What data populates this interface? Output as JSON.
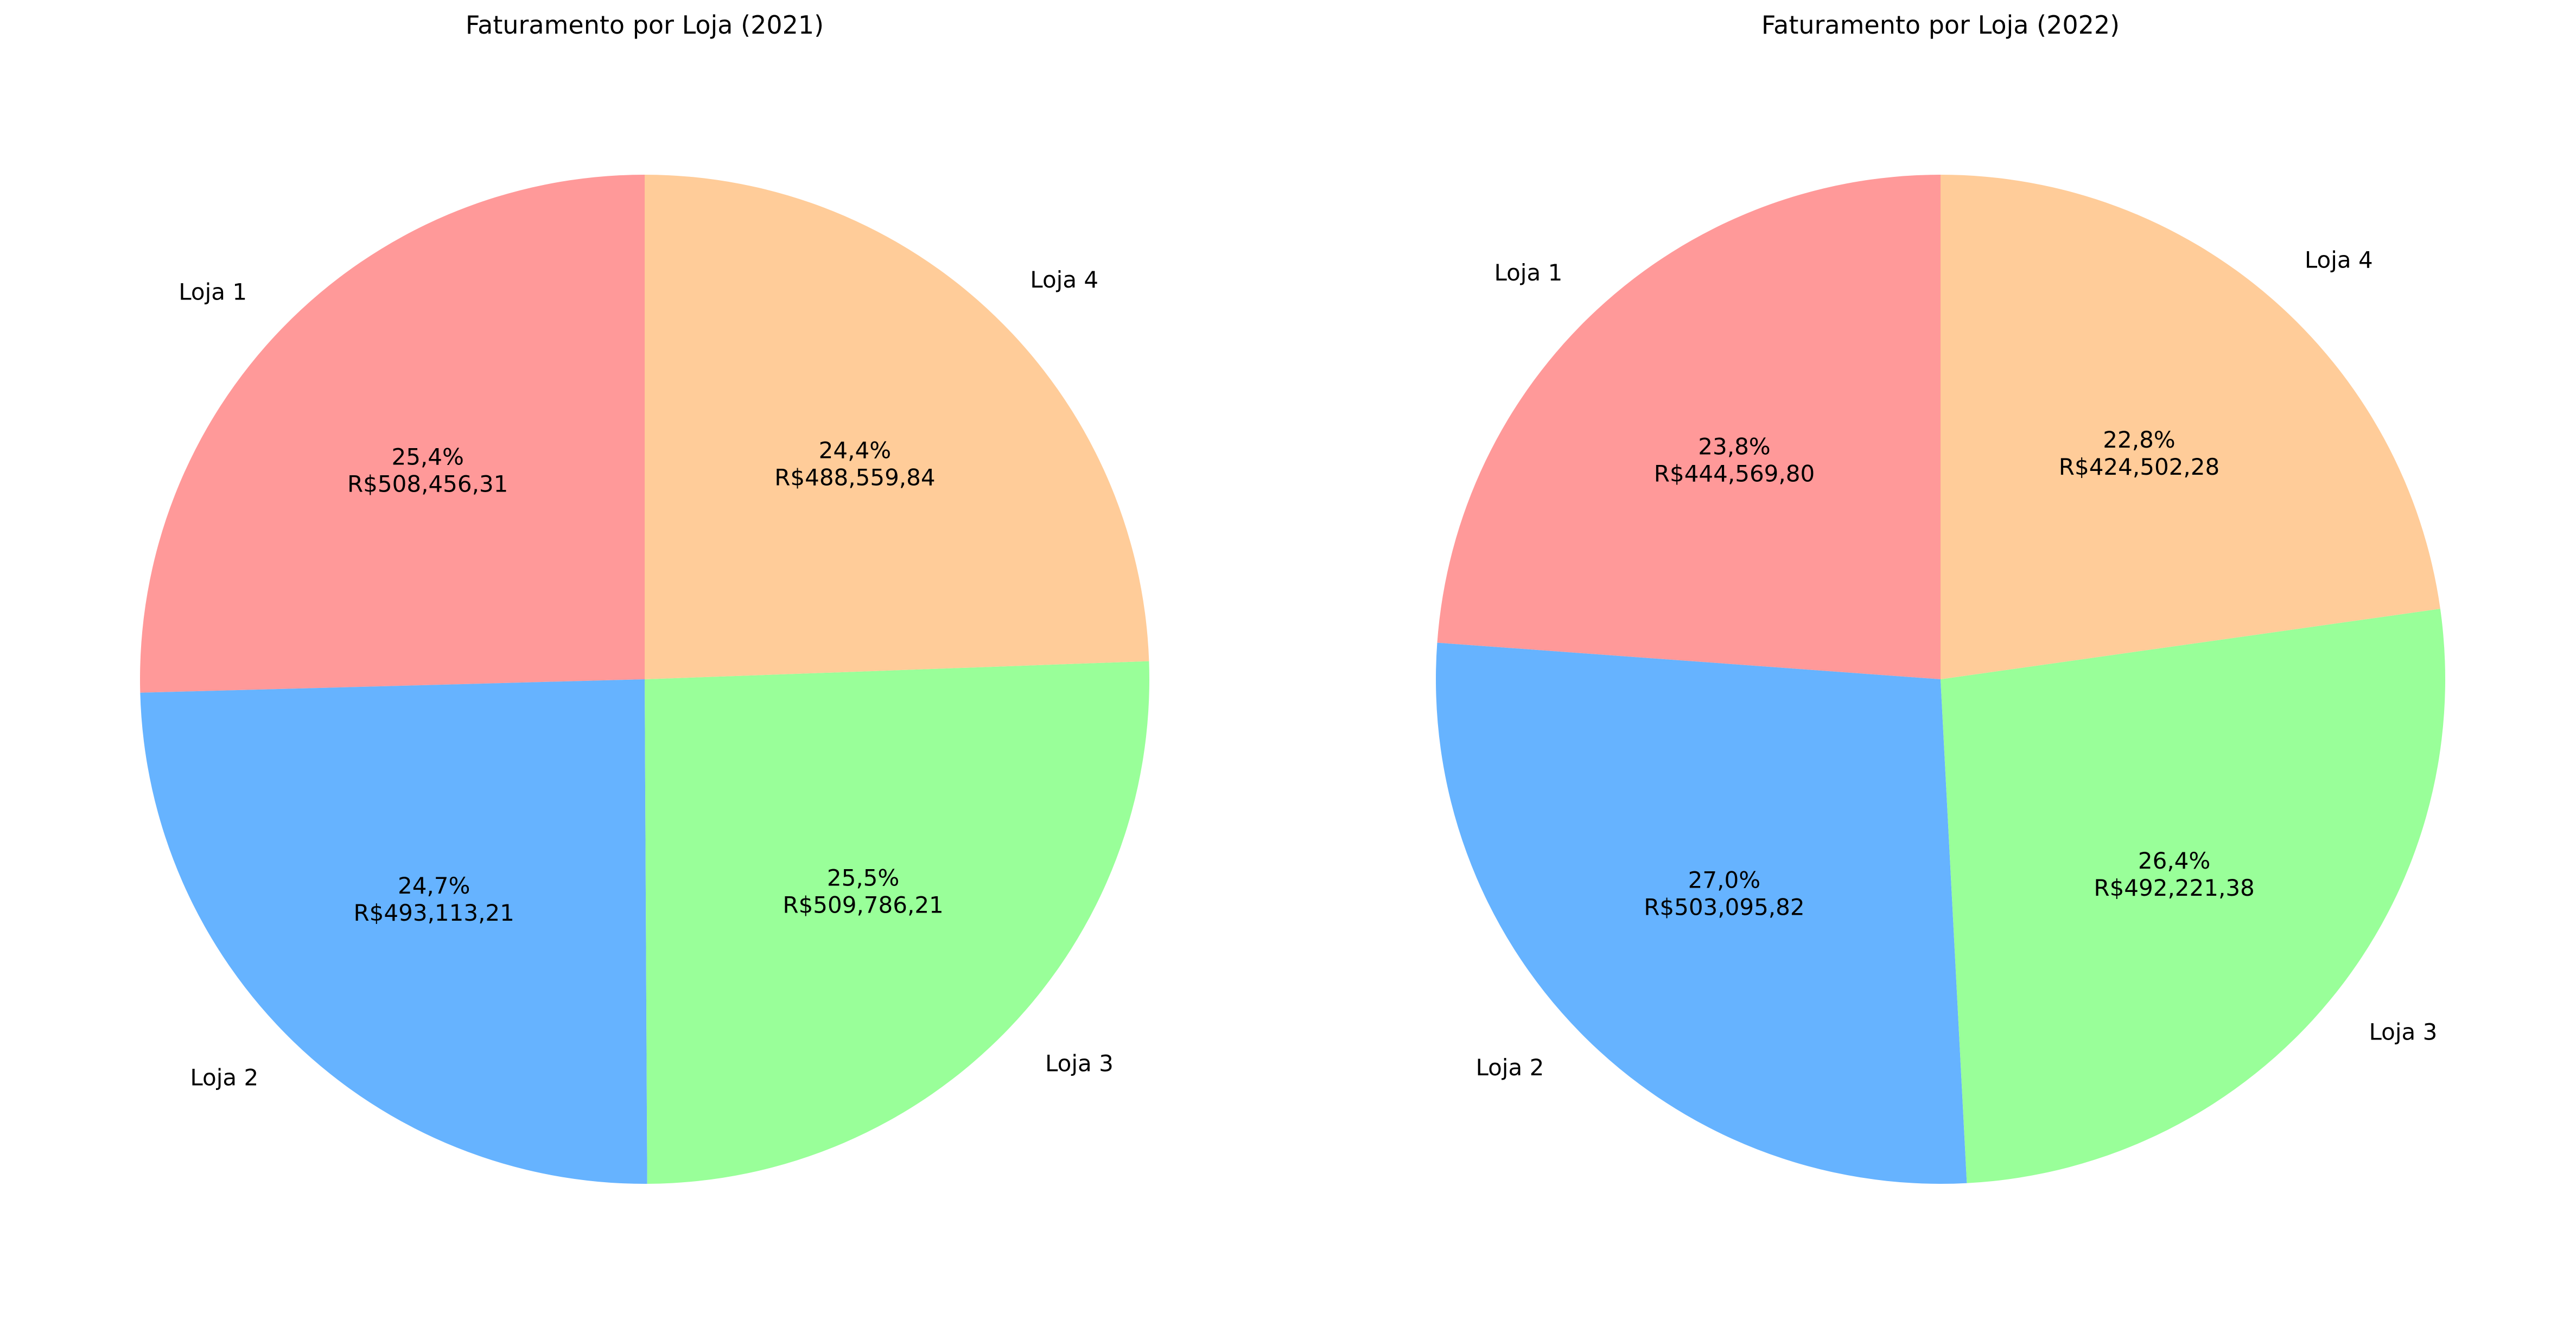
{
  "chart_data": [
    {
      "type": "pie",
      "title": "Faturamento por Loja (2021)",
      "labels": [
        "Loja 1",
        "Loja 2",
        "Loja 3",
        "Loja 4"
      ],
      "values": [
        508456.31,
        493113.21,
        509786.21,
        488559.84
      ],
      "percent_labels": [
        "25,4%",
        "24,7%",
        "25,5%",
        "24,4%"
      ],
      "value_labels": [
        "R$508,456,31",
        "R$493,113,21",
        "R$509,786,21",
        "R$488,559,84"
      ],
      "colors": [
        "#ff9999",
        "#66b3ff",
        "#99ff99",
        "#ffcc99"
      ],
      "start_angle_deg": 90,
      "direction": "counterclockwise"
    },
    {
      "type": "pie",
      "title": "Faturamento por Loja (2022)",
      "labels": [
        "Loja 1",
        "Loja 2",
        "Loja 3",
        "Loja 4"
      ],
      "values": [
        444569.8,
        503095.82,
        492221.38,
        424502.28
      ],
      "percent_labels": [
        "23,8%",
        "27,0%",
        "26,4%",
        "22,8%"
      ],
      "value_labels": [
        "R$444,569,80",
        "R$503,095,82",
        "R$492,221,38",
        "R$424,502,28"
      ],
      "colors": [
        "#ff9999",
        "#66b3ff",
        "#99ff99",
        "#ffcc99"
      ],
      "start_angle_deg": 90,
      "direction": "counterclockwise"
    }
  ]
}
